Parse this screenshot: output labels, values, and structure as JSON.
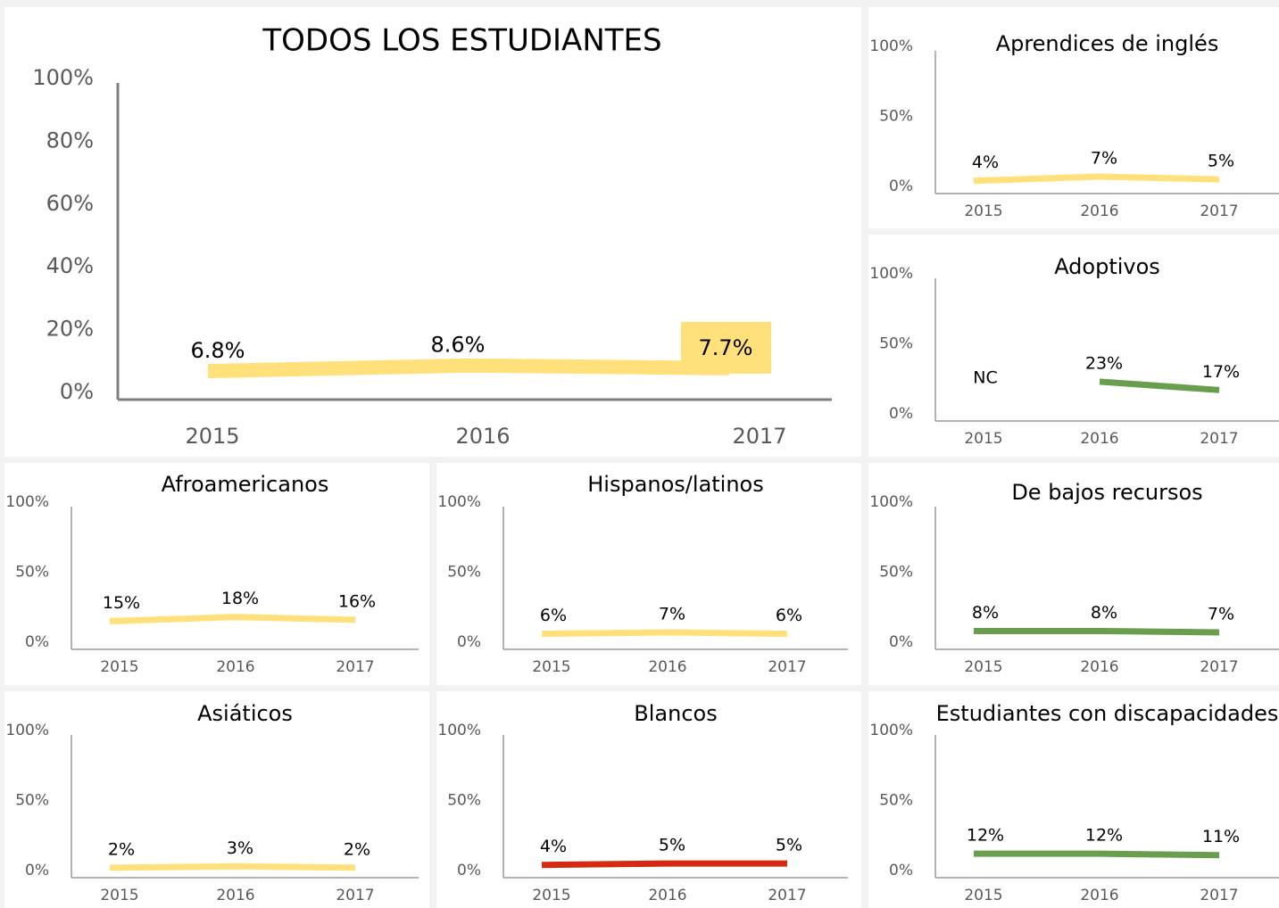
{
  "chart_data": [
    {
      "type": "line",
      "title": "TODOS LOS ESTUDIANTES",
      "categories": [
        "2015",
        "2016",
        "2017"
      ],
      "values": [
        6.8,
        8.6,
        7.7
      ],
      "value_labels": [
        "6.8%",
        "8.6%",
        "7.7%"
      ],
      "color": "#ffe07a",
      "ylim": [
        0,
        100
      ],
      "yticks": [
        {
          "value": 0,
          "label": "0%"
        },
        {
          "value": 20,
          "label": "20%"
        },
        {
          "value": 40,
          "label": "40%"
        },
        {
          "value": 60,
          "label": "60%"
        },
        {
          "value": 80,
          "label": "80%"
        },
        {
          "value": 100,
          "label": "100%"
        }
      ]
    },
    {
      "type": "line",
      "title": "Aprendices de inglés",
      "categories": [
        "2015",
        "2016",
        "2017"
      ],
      "values": [
        4,
        7,
        5
      ],
      "value_labels": [
        "4%",
        "7%",
        "5%"
      ],
      "color": "#ffe07a",
      "ylim": [
        0,
        100
      ],
      "yticks": [
        {
          "value": 0,
          "label": "0%"
        },
        {
          "value": 50,
          "label": "50%"
        },
        {
          "value": 100,
          "label": "100%"
        }
      ]
    },
    {
      "type": "line",
      "title": "Adoptivos",
      "categories": [
        "2015",
        "2016",
        "2017"
      ],
      "values": [
        null,
        23,
        17
      ],
      "value_labels": [
        "NC",
        "23%",
        "17%"
      ],
      "color": "#6a9e4f",
      "ylim": [
        0,
        100
      ],
      "yticks": [
        {
          "value": 0,
          "label": "0%"
        },
        {
          "value": 50,
          "label": "50%"
        },
        {
          "value": 100,
          "label": "100%"
        }
      ]
    },
    {
      "type": "line",
      "title": "Afroamericanos",
      "categories": [
        "2015",
        "2016",
        "2017"
      ],
      "values": [
        15,
        18,
        16
      ],
      "value_labels": [
        "15%",
        "18%",
        "16%"
      ],
      "color": "#ffe07a",
      "ylim": [
        0,
        100
      ],
      "yticks": [
        {
          "value": 0,
          "label": "0%"
        },
        {
          "value": 50,
          "label": "50%"
        },
        {
          "value": 100,
          "label": "100%"
        }
      ]
    },
    {
      "type": "line",
      "title": "Hispanos/latinos",
      "categories": [
        "2015",
        "2016",
        "2017"
      ],
      "values": [
        6,
        7,
        6
      ],
      "value_labels": [
        "6%",
        "7%",
        "6%"
      ],
      "color": "#ffe07a",
      "ylim": [
        0,
        100
      ],
      "yticks": [
        {
          "value": 0,
          "label": "0%"
        },
        {
          "value": 50,
          "label": "50%"
        },
        {
          "value": 100,
          "label": "100%"
        }
      ]
    },
    {
      "type": "line",
      "title": "De bajos recursos",
      "categories": [
        "2015",
        "2016",
        "2017"
      ],
      "values": [
        8,
        8,
        7
      ],
      "value_labels": [
        "8%",
        "8%",
        "7%"
      ],
      "color": "#6a9e4f",
      "ylim": [
        0,
        100
      ],
      "yticks": [
        {
          "value": 0,
          "label": "0%"
        },
        {
          "value": 50,
          "label": "50%"
        },
        {
          "value": 100,
          "label": "100%"
        }
      ]
    },
    {
      "type": "line",
      "title": "Asiáticos",
      "categories": [
        "2015",
        "2016",
        "2017"
      ],
      "values": [
        2,
        3,
        2
      ],
      "value_labels": [
        "2%",
        "3%",
        "2%"
      ],
      "color": "#ffe07a",
      "ylim": [
        0,
        100
      ],
      "yticks": [
        {
          "value": 0,
          "label": "0%"
        },
        {
          "value": 50,
          "label": "50%"
        },
        {
          "value": 100,
          "label": "100%"
        }
      ]
    },
    {
      "type": "line",
      "title": "Blancos",
      "categories": [
        "2015",
        "2016",
        "2017"
      ],
      "values": [
        4,
        5,
        5
      ],
      "value_labels": [
        "4%",
        "5%",
        "5%"
      ],
      "color": "#d42a12",
      "ylim": [
        0,
        100
      ],
      "yticks": [
        {
          "value": 0,
          "label": "0%"
        },
        {
          "value": 50,
          "label": "50%"
        },
        {
          "value": 100,
          "label": "100%"
        }
      ]
    },
    {
      "type": "line",
      "title": "Estudiantes con discapacidades",
      "categories": [
        "2015",
        "2016",
        "2017"
      ],
      "values": [
        12,
        12,
        11
      ],
      "value_labels": [
        "12%",
        "12%",
        "11%"
      ],
      "color": "#6a9e4f",
      "ylim": [
        0,
        100
      ],
      "yticks": [
        {
          "value": 0,
          "label": "0%"
        },
        {
          "value": 50,
          "label": "50%"
        },
        {
          "value": 100,
          "label": "100%"
        }
      ]
    }
  ]
}
